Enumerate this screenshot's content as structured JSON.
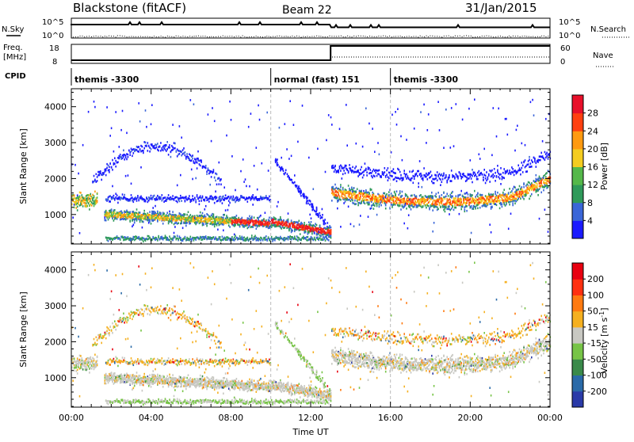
{
  "header": {
    "station": "Blackstone (fitACF)",
    "beam": "Beam 22",
    "date": "31/Jan/2015"
  },
  "status_panels": {
    "nsky_label": "N.Sky",
    "nsearch_label": "N.Search",
    "noise_ticks_left": [
      "10^5",
      "10^0"
    ],
    "noise_ticks_right": [
      "10^5",
      "10^0"
    ],
    "freq_label_1": "Freq.",
    "freq_label_2": "[MHz]",
    "freq_ticks_left": [
      "18",
      "8"
    ],
    "nave_label": "Nave",
    "nave_ticks_right": [
      "60",
      "0"
    ],
    "cpid_label": "CPID",
    "cpid_segments": [
      {
        "label": "themis -3300",
        "start_hour": 0,
        "end_hour": 10
      },
      {
        "label": "normal (fast) 151",
        "start_hour": 10,
        "end_hour": 16
      },
      {
        "label": "themis -3300",
        "start_hour": 16,
        "end_hour": 24
      }
    ]
  },
  "time_axis": {
    "xlabel": "Time UT",
    "tick_labels": [
      "00:00",
      "04:00",
      "08:00",
      "12:00",
      "16:00",
      "20:00",
      "00:00"
    ],
    "tick_hours": [
      0,
      4,
      8,
      12,
      16,
      20,
      24
    ]
  },
  "chart_data": [
    {
      "type": "heatmap",
      "name": "power",
      "ylabel": "Slant Range [km]",
      "yticks": [
        1000,
        2000,
        3000,
        4000
      ],
      "ylim": [
        180,
        4500
      ],
      "xlim": [
        0,
        24
      ],
      "colorbar": {
        "label": "Power [dB]",
        "tick_labels": [
          "28",
          "24",
          "20",
          "16",
          "12",
          "8",
          "4"
        ],
        "colors": [
          "#1a1aff",
          "#3a66d8",
          "#2f9a5a",
          "#55b84a",
          "#f4cc20",
          "#ff9a10",
          "#ff4010",
          "#e8102a"
        ]
      }
    },
    {
      "type": "heatmap",
      "name": "velocity",
      "ylabel": "Slant Range [km]",
      "yticks": [
        1000,
        2000,
        3000,
        4000
      ],
      "ylim": [
        180,
        4500
      ],
      "xlim": [
        0,
        24
      ],
      "colorbar": {
        "label_main": "Velocity [m s",
        "label_sup": "-1",
        "label_end": "]",
        "tick_labels": [
          "200",
          "100",
          "50",
          "15",
          "-15",
          "-50",
          "-100",
          "-200"
        ],
        "colors": [
          "#2a3aa8",
          "#2a6aa8",
          "#3a8a4a",
          "#77c447",
          "#c8c8c2",
          "#f5b020",
          "#ff7a10",
          "#ff3010",
          "#e80010"
        ]
      }
    }
  ]
}
